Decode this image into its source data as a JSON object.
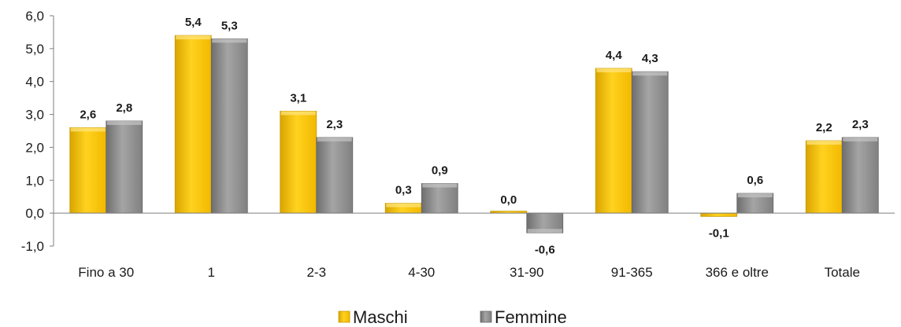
{
  "chart_data": {
    "type": "bar",
    "title": "",
    "xlabel": "",
    "ylabel": "",
    "categories": [
      "Fino a 30",
      "1",
      "2-3",
      "4-30",
      "31-90",
      "91-365",
      "366 e oltre",
      "Totale"
    ],
    "series": [
      {
        "name": "Maschi",
        "values": [
          2.6,
          5.4,
          3.1,
          0.3,
          0.0,
          4.4,
          -0.1,
          2.2
        ],
        "labels": [
          "2,6",
          "5,4",
          "3,1",
          "0,3",
          "0,0",
          "4,4",
          "-0,1",
          "2,2"
        ]
      },
      {
        "name": "Femmine",
        "values": [
          2.8,
          5.3,
          2.3,
          0.9,
          -0.6,
          4.3,
          0.6,
          2.3
        ],
        "labels": [
          "2,8",
          "5,3",
          "2,3",
          "0,9",
          "-0,6",
          "4,3",
          "0,6",
          "2,3"
        ]
      }
    ],
    "ylim": [
      -1.0,
      6.0
    ],
    "yticks": [
      6.0,
      5.0,
      4.0,
      3.0,
      2.0,
      1.0,
      0.0,
      -1.0
    ],
    "ytick_labels": [
      "6,0",
      "5,0",
      "4,0",
      "3,0",
      "2,0",
      "1,0",
      "0,0",
      "-1,0"
    ],
    "grid": false,
    "legend_position": "bottom-center",
    "colors": {
      "Maschi": "#f2c200",
      "Femmine": "#8f8f8f"
    }
  }
}
